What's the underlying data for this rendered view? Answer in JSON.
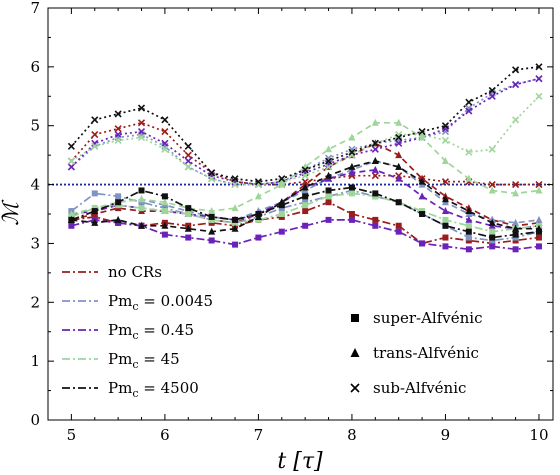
{
  "chart_data": {
    "type": "line",
    "xlabel": "t [τ]",
    "ylabel": "ℳ",
    "xlim": [
      4.75,
      10.15
    ],
    "ylim": [
      0,
      7
    ],
    "xticks": [
      5,
      6,
      7,
      8,
      9,
      10
    ],
    "yticks": [
      0,
      1,
      2,
      3,
      4,
      5,
      6,
      7
    ],
    "reference_line": {
      "y": 4,
      "color": "#1f2a99",
      "style": "dotted"
    },
    "x": [
      5.0,
      5.25,
      5.5,
      5.75,
      6.0,
      6.25,
      6.5,
      6.75,
      7.0,
      7.25,
      7.5,
      7.75,
      8.0,
      8.25,
      8.5,
      8.75,
      9.0,
      9.25,
      9.5,
      9.75,
      10.0
    ],
    "legend_entries": [
      {
        "label": "no CRs",
        "color": "#9b1c1c"
      },
      {
        "label": "Pm_c = 0.0045",
        "color": "#7f93c4"
      },
      {
        "label": "Pm_c = 0.45",
        "color": "#6a22b8"
      },
      {
        "label": "Pm_c = 45",
        "color": "#9ed69a"
      },
      {
        "label": "Pm_c = 4500",
        "color": "#111111"
      }
    ],
    "marker_legend": [
      {
        "label": "super-Alfvénic",
        "marker": "square"
      },
      {
        "label": "trans-Alfvénic",
        "marker": "triangle"
      },
      {
        "label": "sub-Alfvénic",
        "marker": "x"
      }
    ],
    "series": [
      {
        "name": "no CRs",
        "color": "#9b1c1c",
        "panel": "super",
        "style": "dashdot",
        "marker": "square",
        "values": [
          3.4,
          3.45,
          3.35,
          3.3,
          3.35,
          3.3,
          3.35,
          3.3,
          3.4,
          3.45,
          3.55,
          3.7,
          3.5,
          3.4,
          3.3,
          3.0,
          3.1,
          3.05,
          3.0,
          3.05,
          3.1
        ]
      },
      {
        "name": "no CRs",
        "color": "#9b1c1c",
        "panel": "trans",
        "style": "dashed",
        "marker": "triangle",
        "values": [
          3.4,
          3.5,
          3.6,
          3.55,
          3.55,
          3.5,
          3.4,
          3.35,
          3.5,
          3.7,
          4.0,
          4.3,
          4.5,
          4.7,
          4.5,
          4.1,
          3.8,
          3.6,
          3.4,
          3.3,
          3.35
        ]
      },
      {
        "name": "no CRs",
        "color": "#9b1c1c",
        "panel": "sub",
        "style": "dotted",
        "marker": "x",
        "values": [
          4.4,
          4.85,
          4.95,
          5.05,
          4.9,
          4.5,
          4.2,
          4.05,
          4.0,
          4.0,
          4.05,
          4.1,
          4.15,
          4.15,
          4.15,
          4.1,
          4.05,
          4.05,
          4.0,
          4.0,
          4.0
        ]
      },
      {
        "name": "Pm_c = 0.0045",
        "color": "#7f93c4",
        "panel": "super",
        "style": "dashdot",
        "marker": "square",
        "values": [
          3.55,
          3.85,
          3.8,
          3.7,
          3.6,
          3.5,
          3.4,
          3.35,
          3.45,
          3.6,
          3.7,
          3.8,
          3.9,
          3.8,
          3.7,
          3.5,
          3.3,
          3.1,
          3.05,
          3.1,
          3.2
        ]
      },
      {
        "name": "Pm_c = 0.0045",
        "color": "#7f93c4",
        "panel": "trans",
        "style": "dashed",
        "marker": "triangle",
        "values": [
          3.5,
          3.55,
          3.7,
          3.75,
          3.65,
          3.55,
          3.45,
          3.4,
          3.55,
          3.7,
          3.9,
          4.1,
          4.25,
          4.4,
          4.3,
          4.0,
          3.7,
          3.5,
          3.4,
          3.35,
          3.4
        ]
      },
      {
        "name": "Pm_c = 0.0045",
        "color": "#7f93c4",
        "panel": "sub",
        "style": "dotted",
        "marker": "x",
        "values": [
          4.3,
          4.65,
          4.8,
          4.85,
          4.65,
          4.3,
          4.1,
          4.0,
          4.0,
          4.05,
          4.25,
          4.45,
          4.6,
          4.7,
          4.75,
          4.8,
          4.9,
          5.3,
          5.55,
          5.7,
          5.8
        ]
      },
      {
        "name": "Pm_c = 0.45",
        "color": "#6a22b8",
        "panel": "super",
        "style": "dashdot",
        "marker": "square",
        "values": [
          3.3,
          3.4,
          3.35,
          3.3,
          3.15,
          3.1,
          3.05,
          2.98,
          3.1,
          3.2,
          3.3,
          3.4,
          3.4,
          3.3,
          3.2,
          3.0,
          2.95,
          2.9,
          2.95,
          2.9,
          2.95
        ]
      },
      {
        "name": "Pm_c = 0.45",
        "color": "#6a22b8",
        "panel": "trans",
        "style": "dashed",
        "marker": "triangle",
        "values": [
          3.5,
          3.55,
          3.65,
          3.6,
          3.55,
          3.5,
          3.45,
          3.4,
          3.5,
          3.7,
          3.95,
          4.1,
          4.2,
          4.25,
          4.1,
          3.8,
          3.55,
          3.4,
          3.3,
          3.25,
          3.3
        ]
      },
      {
        "name": "Pm_c = 0.45",
        "color": "#6a22b8",
        "panel": "sub",
        "style": "dotted",
        "marker": "x",
        "values": [
          4.3,
          4.7,
          4.85,
          4.9,
          4.7,
          4.4,
          4.15,
          4.05,
          4.0,
          4.05,
          4.2,
          4.35,
          4.5,
          4.6,
          4.7,
          4.8,
          4.95,
          5.25,
          5.5,
          5.7,
          5.8
        ]
      },
      {
        "name": "Pm_c = 45",
        "color": "#9ed69a",
        "panel": "super",
        "style": "dashdot",
        "marker": "square",
        "values": [
          3.45,
          3.6,
          3.65,
          3.6,
          3.55,
          3.5,
          3.4,
          3.35,
          3.4,
          3.5,
          3.65,
          3.8,
          3.85,
          3.8,
          3.7,
          3.55,
          3.4,
          3.3,
          3.2,
          3.25,
          3.3
        ]
      },
      {
        "name": "Pm_c = 45",
        "color": "#9ed69a",
        "panel": "trans",
        "style": "dashed",
        "marker": "triangle",
        "values": [
          3.5,
          3.6,
          3.7,
          3.75,
          3.7,
          3.6,
          3.55,
          3.6,
          3.8,
          4.0,
          4.3,
          4.6,
          4.8,
          5.05,
          5.05,
          4.8,
          4.4,
          4.1,
          3.9,
          3.85,
          3.9
        ]
      },
      {
        "name": "Pm_c = 45",
        "color": "#9ed69a",
        "panel": "sub",
        "style": "dotted",
        "marker": "x",
        "values": [
          4.4,
          4.65,
          4.75,
          4.8,
          4.6,
          4.3,
          4.1,
          4.0,
          4.0,
          4.05,
          4.15,
          4.3,
          4.5,
          4.7,
          4.85,
          4.85,
          4.75,
          4.55,
          4.6,
          5.1,
          5.5
        ]
      },
      {
        "name": "Pm_c = 4500",
        "color": "#111111",
        "panel": "super",
        "style": "dashdot",
        "marker": "square",
        "values": [
          3.4,
          3.55,
          3.7,
          3.9,
          3.8,
          3.6,
          3.45,
          3.4,
          3.5,
          3.65,
          3.8,
          3.9,
          3.95,
          3.85,
          3.7,
          3.5,
          3.3,
          3.2,
          3.1,
          3.15,
          3.2
        ]
      },
      {
        "name": "Pm_c = 4500",
        "color": "#111111",
        "panel": "trans",
        "style": "dashed",
        "marker": "triangle",
        "values": [
          3.4,
          3.35,
          3.4,
          3.3,
          3.3,
          3.25,
          3.2,
          3.25,
          3.45,
          3.7,
          3.95,
          4.15,
          4.3,
          4.4,
          4.3,
          4.05,
          3.75,
          3.55,
          3.35,
          3.25,
          3.25
        ]
      },
      {
        "name": "Pm_c = 4500",
        "color": "#111111",
        "panel": "sub",
        "style": "dotted",
        "marker": "x",
        "values": [
          4.65,
          5.1,
          5.2,
          5.3,
          5.1,
          4.65,
          4.2,
          4.1,
          4.05,
          4.1,
          4.25,
          4.4,
          4.55,
          4.7,
          4.8,
          4.9,
          5.0,
          5.4,
          5.6,
          5.95,
          6.0
        ]
      }
    ]
  }
}
